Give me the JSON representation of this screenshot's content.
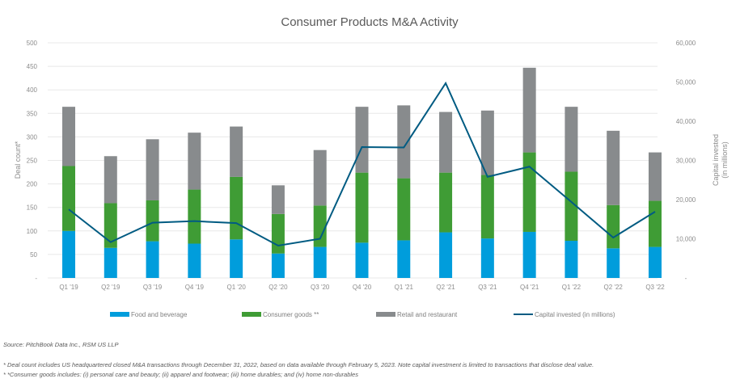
{
  "chart_data": {
    "type": "bar",
    "title": "Consumer Products M&A Activity",
    "ylabel": "Deal count*",
    "y2label": [
      "Capital invested",
      "(in millions)"
    ],
    "ylim": [
      0,
      500
    ],
    "y2lim": [
      0,
      60000
    ],
    "yticks": [
      "-",
      "50",
      "100",
      "150",
      "200",
      "250",
      "300",
      "350",
      "400",
      "450",
      "500"
    ],
    "y2ticks": [
      "-",
      "10,000",
      "20,000",
      "30,000",
      "40,000",
      "50,000",
      "60,000"
    ],
    "grid": true,
    "stacked": true,
    "legend_position": "bottom",
    "categories": [
      "Q1 '19",
      "Q2 '19",
      "Q3 '19",
      "Q4 '19",
      "Q1 '20",
      "Q2 '20",
      "Q3 '20",
      "Q4 '20",
      "Q1 '21",
      "Q2 '21",
      "Q3 '21",
      "Q4 '21",
      "Q1 '22",
      "Q2 '22",
      "Q3 '22"
    ],
    "series": [
      {
        "name": "Food and beverage",
        "color": "#009ddc",
        "values": [
          100,
          64,
          78,
          73,
          82,
          52,
          66,
          75,
          80,
          97,
          84,
          98,
          79,
          63,
          66
        ]
      },
      {
        "name": "Consumer goods **",
        "color": "#3f9c35",
        "values": [
          138,
          95,
          87,
          115,
          133,
          84,
          88,
          149,
          132,
          127,
          135,
          169,
          147,
          92,
          98
        ]
      },
      {
        "name": "Retail and restaurant",
        "color": "#888b8d",
        "values": [
          126,
          100,
          130,
          121,
          107,
          61,
          118,
          140,
          155,
          129,
          137,
          180,
          138,
          158,
          103
        ]
      },
      {
        "name": "Capital invested (in millions)",
        "color": "#005b82",
        "type": "line",
        "axis": "right",
        "values": [
          17500,
          9150,
          14100,
          14500,
          14000,
          8250,
          10000,
          33400,
          33300,
          49700,
          25800,
          28400,
          19400,
          10300,
          16900
        ]
      }
    ]
  },
  "notes": {
    "source": "Source: PitchBook Data Inc., RSM US LLP",
    "footnote1": "* Deal count includes US headquartered closed M&A transactions through December 31, 2022, based on data available through February 5, 2023. Note capital investment is limited to transactions that disclose deal value.",
    "footnote2": "* *Consumer goods includes: (i) personal care and beauty; (ii) apparel and footwear; (iii) home durables; and (iv) home non-durables"
  }
}
